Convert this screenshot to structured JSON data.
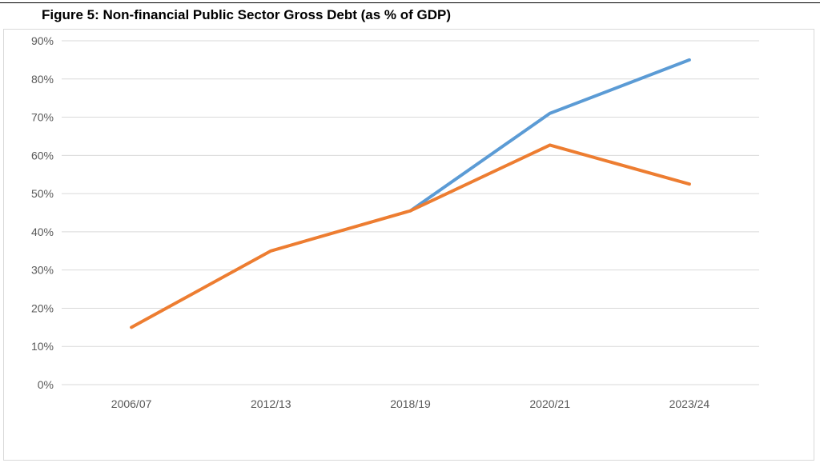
{
  "figure": {
    "title": "Figure 5: Non-financial Public Sector Gross Debt (as % of GDP)"
  },
  "chart_data": {
    "type": "line",
    "title": "Figure 5: Non-financial Public Sector Gross Debt (as % of GDP)",
    "xlabel": "",
    "ylabel": "",
    "categories": [
      "2006/07",
      "2012/13",
      "2018/19",
      "2020/21",
      "2023/24"
    ],
    "y_ticks": [
      "0%",
      "10%",
      "20%",
      "30%",
      "40%",
      "50%",
      "60%",
      "70%",
      "80%",
      "90%"
    ],
    "ylim": [
      0,
      90
    ],
    "y_unit": "%",
    "grid": true,
    "legend": "none",
    "series": [
      {
        "color": "#5b9bd5",
        "values": [
          null,
          null,
          45.5,
          71,
          85
        ]
      },
      {
        "color": "#ed7d31",
        "values": [
          15,
          35,
          45.5,
          62.7,
          52.5
        ]
      }
    ]
  }
}
